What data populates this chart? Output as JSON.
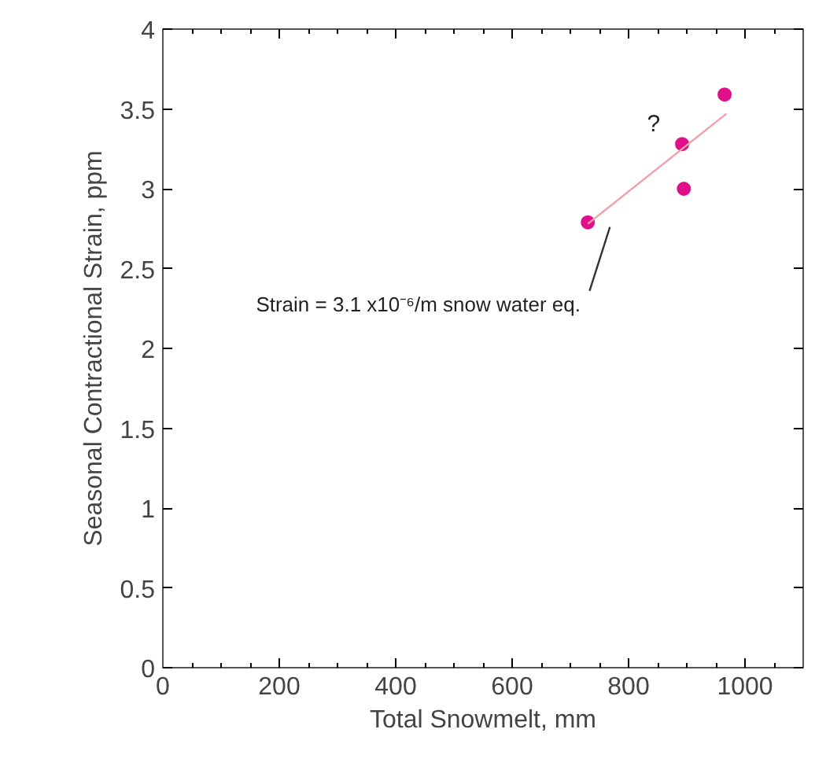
{
  "chart_data": {
    "type": "scatter",
    "xlabel": "Total Snowmelt, mm",
    "ylabel": "Seasonal Contractional Strain, ppm",
    "series": [
      {
        "color": "#e0108a",
        "marker": "circle",
        "x": [
          730,
          892,
          895,
          965
        ],
        "values": [
          2.79,
          3.28,
          3.0,
          3.59
        ]
      },
      {
        "type": "line",
        "color": "#f0a0a8",
        "x": [
          730,
          968
        ],
        "values": [
          2.78,
          3.47
        ]
      }
    ],
    "annotations": [
      "Strain = 3.1 x10⁻⁶/m snow water eq.",
      {
        "text": "?",
        "x": 892,
        "y": 3.28
      }
    ],
    "xlim": [
      0,
      1100
    ],
    "ylim": [
      0,
      4
    ],
    "xticks": [
      0,
      200,
      400,
      600,
      800,
      1000
    ],
    "yticks": [
      0,
      0.5,
      1,
      1.5,
      2,
      2.5,
      3,
      3.5,
      4
    ]
  }
}
